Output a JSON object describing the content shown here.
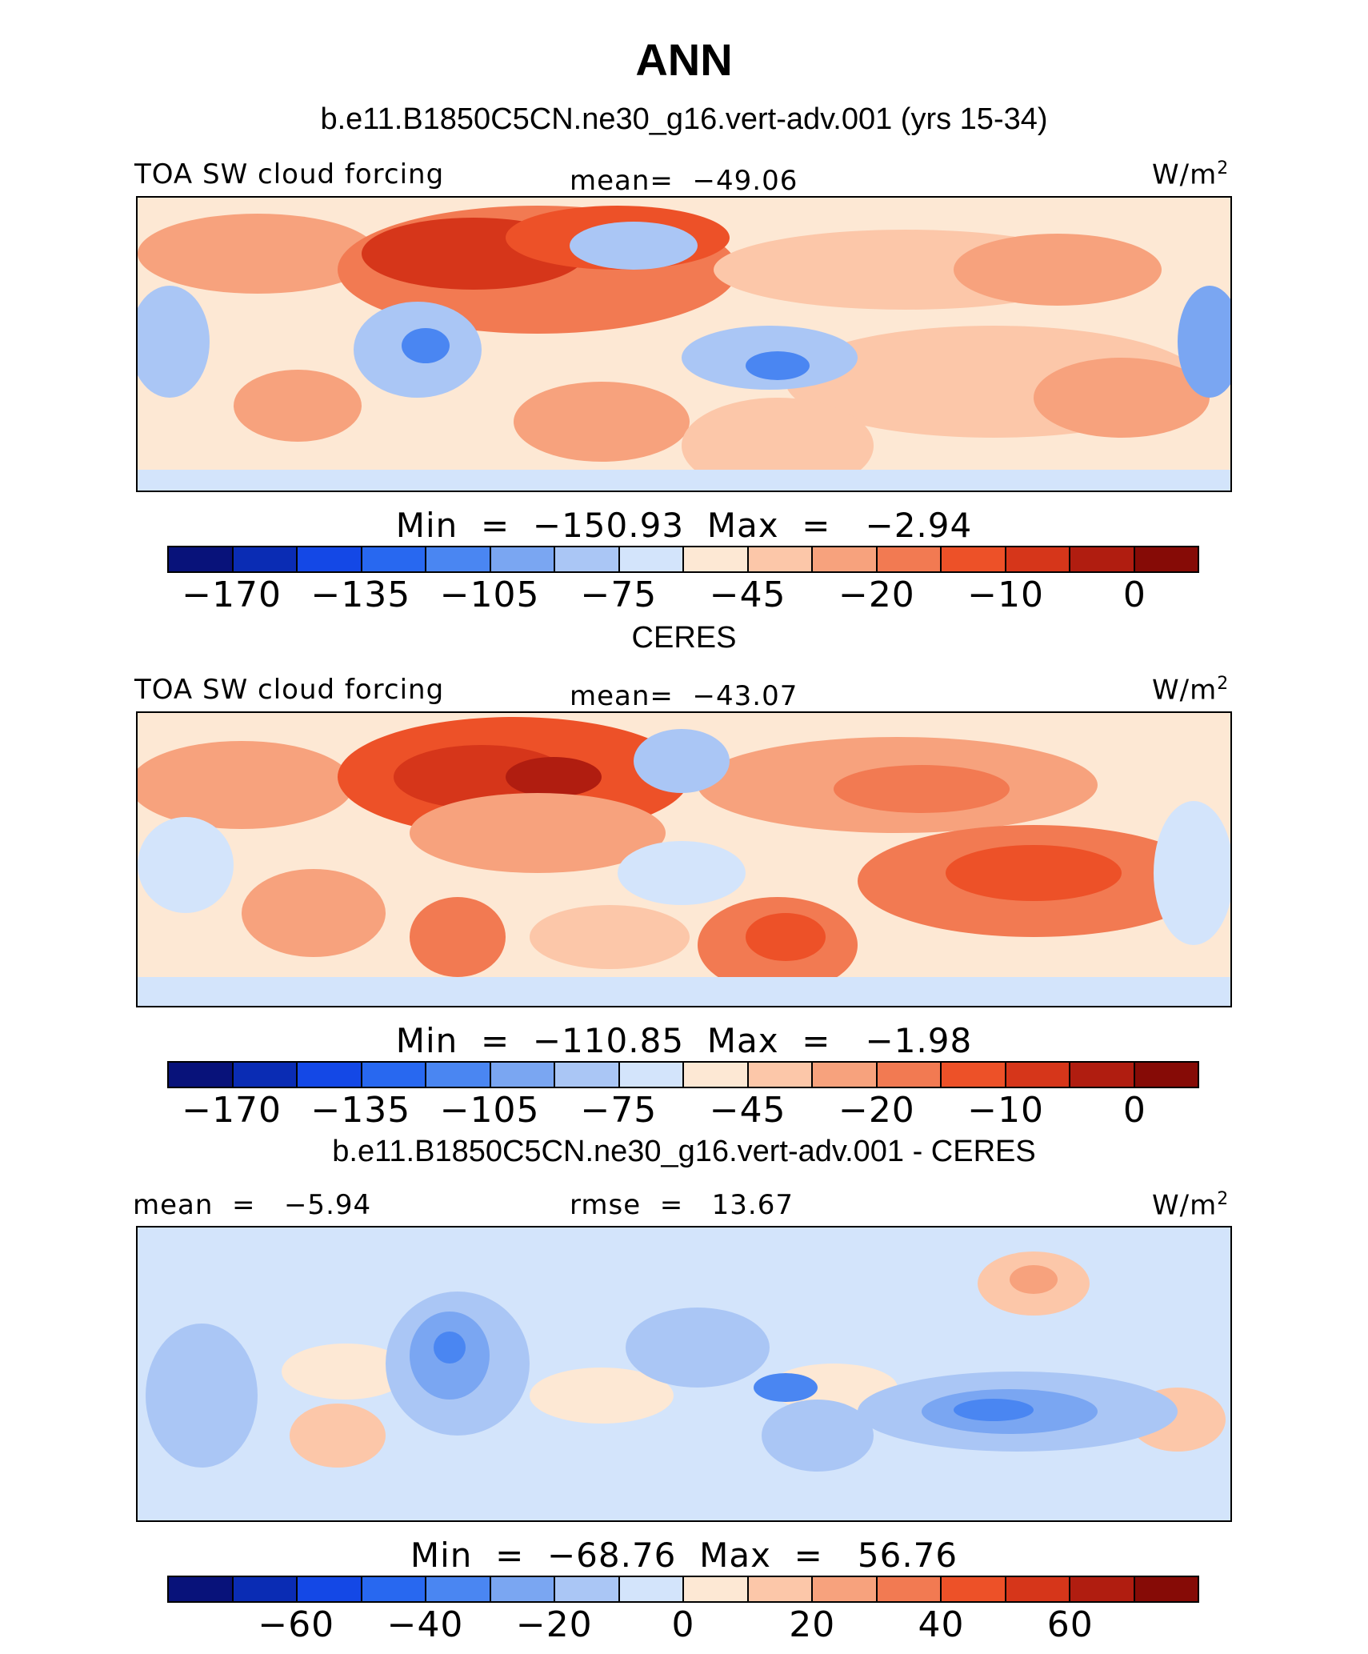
{
  "header": {
    "main_title": "ANN",
    "run_title": "b.e11.B1850C5CN.ne30_g16.vert-adv.001 (yrs 15-34)"
  },
  "palette": [
    "#08127a",
    "#0a2cb4",
    "#1448e6",
    "#2868f0",
    "#4a86f2",
    "#7aa6f2",
    "#aac6f5",
    "#d3e4fb",
    "#fde8d4",
    "#fcc7a9",
    "#f7a27d",
    "#f27a52",
    "#ed5128",
    "#d6361a",
    "#b01d10",
    "#860b06"
  ],
  "panels": [
    {
      "id": "model",
      "section_title": "",
      "left_label": "TOA SW cloud forcing",
      "center_label": "mean=  −49.06",
      "units": "W/m",
      "units_exp": "2",
      "min_max": "Min  =  −150.93  Max  =   −2.94",
      "ticks": [
        "−170",
        "−135",
        "−105",
        "−75",
        "−45",
        "−20",
        "−10",
        "0"
      ]
    },
    {
      "id": "obs",
      "section_title": "CERES",
      "left_label": "TOA SW cloud forcing",
      "center_label": "mean=  −43.07",
      "units": "W/m",
      "units_exp": "2",
      "min_max": "Min  =  −110.85  Max  =   −1.98",
      "ticks": [
        "−170",
        "−135",
        "−105",
        "−75",
        "−45",
        "−20",
        "−10",
        "0"
      ]
    },
    {
      "id": "diff",
      "section_title": "b.e11.B1850C5CN.ne30_g16.vert-adv.001 - CERES",
      "left_label": "mean  =   −5.94",
      "center_label": "rmse  =   13.67",
      "units": "W/m",
      "units_exp": "2",
      "min_max": "Min  =  −68.76  Max  =   56.76",
      "ticks": [
        "−60",
        "−40",
        "−20",
        "0",
        "20",
        "40",
        "60"
      ]
    }
  ]
}
